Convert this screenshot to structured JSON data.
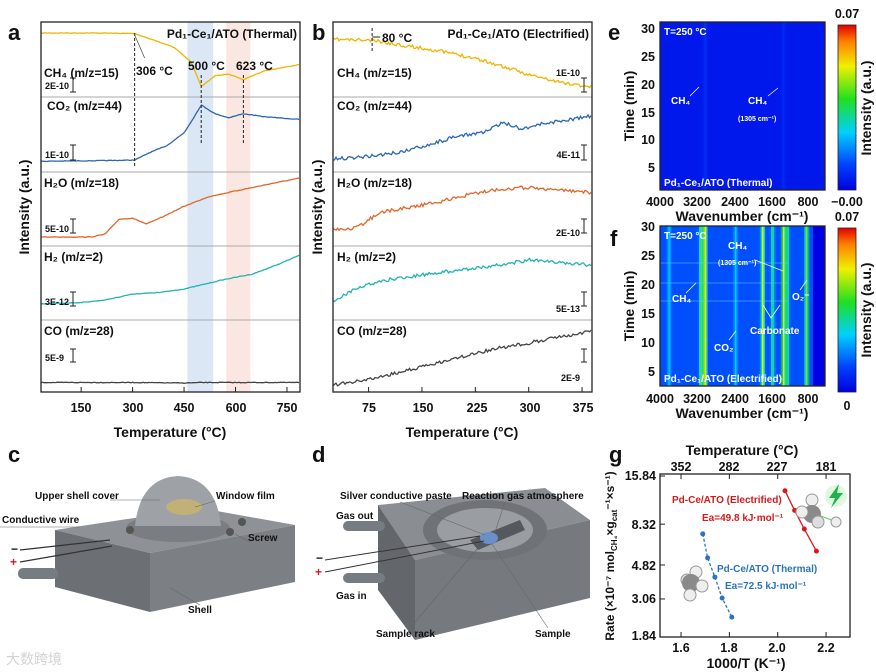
{
  "panel_labels": {
    "a": "a",
    "b": "b",
    "c": "c",
    "d": "d",
    "e": "e",
    "f": "f",
    "g": "g"
  },
  "watermark": "大数跨境",
  "chart_data": [
    {
      "panel": "a",
      "type": "line",
      "title": "Pd₁-Ce₁/ATO (Thermal)",
      "xlabel": "Temperature (°C)",
      "ylabel": "Intensity (a.u.)",
      "xlim": [
        33,
        788
      ],
      "xticks": [
        150,
        300,
        450,
        600,
        750
      ],
      "xtick_labels": [
        "150",
        "300",
        "450",
        "600",
        "750"
      ],
      "bands": [
        {
          "from": 460,
          "to": 535,
          "color": "#dbe7f4"
        },
        {
          "from": 573,
          "to": 643,
          "color": "#fbe7e1"
        }
      ],
      "markers": [
        {
          "text": "306 °C",
          "x": 306
        },
        {
          "text": "500 °C",
          "x": 500
        },
        {
          "text": "623 °C",
          "x": 623
        }
      ],
      "series": [
        {
          "name": "CH₄ (m/z=15)",
          "scale": "2E-10",
          "color": "#f0b400",
          "x": [
            33,
            200,
            306,
            350,
            420,
            470,
            500,
            540,
            580,
            623,
            680,
            788
          ],
          "y": [
            1,
            1,
            0.99,
            0.9,
            0.75,
            0.5,
            0.06,
            0.25,
            0.28,
            0.18,
            0.33,
            0.45
          ]
        },
        {
          "name": "CO₂ (m/z=44)",
          "scale": "1E-10",
          "color": "#2b67b1",
          "x": [
            33,
            200,
            306,
            350,
            400,
            450,
            480,
            500,
            540,
            580,
            623,
            680,
            788
          ],
          "y": [
            0.03,
            0.04,
            0.05,
            0.18,
            0.3,
            0.52,
            0.8,
            1.0,
            0.85,
            0.78,
            0.85,
            0.8,
            0.75
          ]
        },
        {
          "name": "H₂O (m/z=18)",
          "scale": "5E-10",
          "color": "#e2662a",
          "x": [
            33,
            180,
            220,
            260,
            300,
            340,
            380,
            450,
            520,
            600,
            700,
            788
          ],
          "y": [
            0,
            0,
            0.05,
            0.3,
            0.32,
            0.22,
            0.32,
            0.52,
            0.68,
            0.78,
            0.9,
            1.0
          ]
        },
        {
          "name": "H₂ (m/z=2)",
          "scale": "3E-12",
          "color": "#22b3b3",
          "x": [
            33,
            150,
            220,
            300,
            380,
            450,
            500,
            560,
            650,
            720,
            788
          ],
          "y": [
            0.02,
            0.05,
            0.1,
            0.22,
            0.25,
            0.32,
            0.4,
            0.5,
            0.62,
            0.8,
            1.0
          ]
        },
        {
          "name": "CO (m/z=28)",
          "scale": "5E-9",
          "color": "#444444",
          "x": [
            33,
            300,
            450,
            500,
            600,
            788
          ],
          "y": [
            0.1,
            0.1,
            0.08,
            0.1,
            0.1,
            0.1
          ]
        }
      ]
    },
    {
      "panel": "b",
      "type": "line",
      "title": "Pd₁-Ce₁/ATO (Electrified)",
      "xlabel": "Temperature (°C)",
      "ylabel": "Intensity (a.u.)",
      "xlim": [
        25,
        389
      ],
      "xticks": [
        75,
        150,
        225,
        300,
        375
      ],
      "xtick_labels": [
        "75",
        "150",
        "225",
        "300",
        "375"
      ],
      "markers": [
        {
          "text": "80 °C",
          "x": 80
        }
      ],
      "series": [
        {
          "name": "CH₄ (m/z=15)",
          "scale": "1E-10",
          "color": "#f0b400",
          "x": [
            28,
            80,
            120,
            170,
            225,
            270,
            300,
            340,
            389
          ],
          "y": [
            0.92,
            0.9,
            0.82,
            0.72,
            0.58,
            0.4,
            0.28,
            0.15,
            0.05
          ]
        },
        {
          "name": "CO₂ (m/z=44)",
          "scale": "4E-11",
          "color": "#2b67b1",
          "x": [
            28,
            80,
            120,
            160,
            200,
            240,
            265,
            290,
            320,
            360,
            389
          ],
          "y": [
            0.02,
            0.08,
            0.15,
            0.3,
            0.45,
            0.55,
            0.72,
            0.6,
            0.7,
            0.78,
            0.85
          ]
        },
        {
          "name": "H₂O (m/z=18)",
          "scale": "2E-10",
          "color": "#e2662a",
          "x": [
            28,
            60,
            90,
            130,
            170,
            220,
            260,
            300,
            340,
            389
          ],
          "y": [
            0,
            0.05,
            0.35,
            0.45,
            0.55,
            0.72,
            0.82,
            0.85,
            0.8,
            0.75
          ]
        },
        {
          "name": "H₂ (m/z=2)",
          "scale": "5E-13",
          "color": "#22b3b3",
          "x": [
            28,
            60,
            100,
            150,
            200,
            250,
            300,
            340,
            389
          ],
          "y": [
            0.1,
            0.35,
            0.5,
            0.6,
            0.7,
            0.78,
            0.9,
            0.85,
            0.8
          ]
        },
        {
          "name": "CO (m/z=28)",
          "scale": "2E-9",
          "color": "#444444",
          "x": [
            28,
            80,
            150,
            200,
            250,
            300,
            340,
            389
          ],
          "y": [
            0,
            0.1,
            0.3,
            0.45,
            0.6,
            0.7,
            0.8,
            0.9
          ]
        }
      ]
    },
    {
      "panel": "e",
      "type": "heatmap",
      "xlabel": "Wavenumber (cm⁻¹)",
      "ylabel": "Time (min)",
      "xlim": [
        4000,
        400
      ],
      "ylim": [
        1,
        31
      ],
      "xtick_labels": [
        "4000",
        "3200",
        "2400",
        "1600",
        "800"
      ],
      "ytick_labels": [
        "5",
        "10",
        "15",
        "20",
        "25",
        "30"
      ],
      "colorbar": {
        "label": "Intensity (a.u.)",
        "max": "0.07",
        "min": "−0.00"
      },
      "annotations": {
        "temp": "T=250 °C",
        "ch4_a": "CH₄",
        "ch4_b": "CH₄",
        "ch4_b_note": "(1305 cm⁻¹)",
        "sample": "Pd₁-Ce₁/ATO (Thermal)"
      },
      "peaks": [
        {
          "wn": 3015,
          "intensity": 0.004
        },
        {
          "wn": 1305,
          "intensity": 0.003
        }
      ]
    },
    {
      "panel": "f",
      "type": "heatmap",
      "xlabel": "Wavenumber (cm⁻¹)",
      "ylabel": "Time (min)",
      "xlim": [
        4000,
        400
      ],
      "ylim": [
        1,
        31
      ],
      "xtick_labels": [
        "4000",
        "3200",
        "2400",
        "1600",
        "800"
      ],
      "ytick_labels": [
        "5",
        "10",
        "15",
        "20",
        "25",
        "30"
      ],
      "colorbar": {
        "label": "Intensity (a.u.)",
        "max": "0.07",
        "min": "0"
      },
      "annotations": {
        "temp": "T=250 °C",
        "ch4_a": "CH₄",
        "ch4_b": "CH₄",
        "ch4_b_note": "(1305 cm⁻¹)",
        "co2": "CO₂",
        "carbonate": "Carbonate",
        "o2": "O₂⁻",
        "sample": "Pd₁-Ce₁/ATO (Electrified)"
      },
      "peaks": [
        {
          "wn": 3015,
          "intensity": 0.045
        },
        {
          "wn": 3100,
          "intensity": 0.03
        },
        {
          "wn": 1760,
          "intensity": 0.04
        },
        {
          "wn": 1540,
          "intensity": 0.022
        },
        {
          "wn": 1305,
          "intensity": 0.042
        },
        {
          "wn": 1220,
          "intensity": 0.025
        },
        {
          "wn": 800,
          "intensity": 0.035
        },
        {
          "wn": 3800,
          "intensity": 0.012
        },
        {
          "wn": 2350,
          "intensity": 0.012
        }
      ]
    },
    {
      "panel": "g",
      "type": "scatter",
      "xlabel": "1000/T (K⁻¹)",
      "top_xlabel": "Temperature (°C)",
      "ylabel_parts": [
        "Rate (×10⁻⁷ mol",
        "CH₄",
        "×g",
        "cat",
        "⁻¹×s⁻¹)"
      ],
      "xlim": [
        1.513,
        2.299
      ],
      "ylim": [
        1.84,
        15.84
      ],
      "yscale": "log",
      "xticks": [
        1.6,
        1.8,
        2.0,
        2.2
      ],
      "xtick_labels": [
        "1.6",
        "1.8",
        "2.0",
        "2.2"
      ],
      "top_xtick_labels": [
        "352",
        "282",
        "227",
        "181"
      ],
      "yticks": [
        1.84,
        3.06,
        4.82,
        8.32,
        15.84
      ],
      "ytick_labels": [
        "1.84",
        "3.06",
        "4.82",
        "8.32",
        "15.84"
      ],
      "series": [
        {
          "name": "Pd-Ce/ATO (Electrified)",
          "ea": "Ea=49.8 kJ·mol⁻¹",
          "color": "#d7191c",
          "dashed": false,
          "x": [
            2.03,
            2.07,
            2.11,
            2.16
          ],
          "y": [
            13.0,
            10.0,
            7.8,
            5.8
          ]
        },
        {
          "name": "Pd-Ce/ATO (Thermal)",
          "ea": "Ea=72.5 kJ·mol⁻¹",
          "color": "#2b73c0",
          "dashed": true,
          "x": [
            1.69,
            1.71,
            1.74,
            1.77,
            1.81
          ],
          "y": [
            7.3,
            5.3,
            4.1,
            3.1,
            2.4
          ]
        }
      ]
    }
  ],
  "panel_c": {
    "upper_shell_cover": "Upper shell cover",
    "window_film": "Window film",
    "conductive_wire": "Conductive wire",
    "screw": "Screw",
    "shell": "Shell",
    "minus": "−",
    "plus": "+"
  },
  "panel_d": {
    "silver_paste": "Silver conductive paste",
    "gas_atmosphere": "Reaction gas atmosphere",
    "gas_out": "Gas out",
    "gas_in": "Gas in",
    "sample_rack": "Sample rack",
    "sample": "Sample",
    "minus": "−",
    "plus": "+"
  }
}
